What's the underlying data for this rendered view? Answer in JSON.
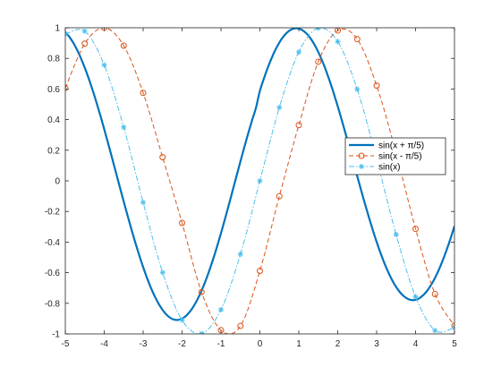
{
  "chart_data": {
    "type": "line",
    "title": "",
    "xlabel": "",
    "ylabel": "",
    "xlim": [
      -5,
      5
    ],
    "ylim": [
      -1,
      1
    ],
    "grid": false,
    "legend_position": "right",
    "x_ticks": [
      "-5",
      "-4",
      "-3",
      "-2",
      "-1",
      "0",
      "1",
      "2",
      "3",
      "4",
      "5"
    ],
    "y_ticks": [
      "-1",
      "-0.8",
      "-0.6",
      "-0.4",
      "-0.2",
      "0",
      "0.2",
      "0.4",
      "0.6",
      "0.8",
      "1"
    ],
    "series": [
      {
        "name": "sin(x + π/5)",
        "color": "#0072BD",
        "line_style": "solid",
        "marker": "none",
        "x": [
          -5.0,
          -4.9,
          -4.8,
          -4.7,
          -4.6,
          -4.5,
          -4.4,
          -4.3,
          -4.2,
          -4.1,
          -4.0,
          -3.9,
          -3.8,
          -3.7,
          -3.6,
          -3.5,
          -3.4,
          -3.3,
          -3.2,
          -3.1,
          -3.0,
          -2.9,
          -2.8,
          -2.7,
          -2.6,
          -2.5,
          -2.4,
          -2.3,
          -2.2,
          -2.1,
          -2.0,
          -1.9,
          -1.8,
          -1.7,
          -1.6,
          -1.5,
          -1.4,
          -1.3,
          -1.2,
          -1.1,
          -1.0,
          -0.9,
          -0.8,
          -0.7,
          -0.6,
          -0.5,
          -0.4,
          -0.3,
          -0.2,
          -0.1,
          0.0,
          0.1,
          0.2,
          0.3,
          0.4,
          0.5,
          0.6,
          0.7,
          0.8,
          0.9,
          1.0,
          1.1,
          1.2,
          1.3,
          1.4,
          1.5,
          1.6,
          1.7,
          1.8,
          1.9,
          2.0,
          2.1,
          2.2,
          2.3,
          2.4,
          2.5,
          2.6,
          2.7,
          2.8,
          2.9,
          3.0,
          3.1,
          3.2,
          3.3,
          3.4,
          3.5,
          3.6,
          3.7,
          3.8,
          3.9,
          4.0,
          4.1,
          4.2,
          4.3,
          4.4,
          4.5,
          4.6,
          4.7,
          4.8,
          4.9,
          5.0
        ],
        "y": [
          0.9715,
          0.942,
          0.9036,
          0.8565,
          0.8015,
          0.7389,
          0.6695,
          0.5938,
          0.5127,
          0.427,
          0.3375,
          0.2451,
          0.1508,
          0.0556,
          -0.0397,
          -0.1342,
          -0.2272,
          -0.3175,
          -0.4043,
          -0.4867,
          -0.5638,
          -0.6348,
          -0.6989,
          -0.7555,
          -0.8039,
          -0.8436,
          -0.8742,
          -0.8954,
          -0.9069,
          -0.9086,
          -0.9004,
          -0.8825,
          -0.8549,
          -0.8181,
          -0.7723,
          -0.718,
          -0.6558,
          -0.5863,
          -0.5103,
          -0.4286,
          -0.3421,
          -0.2517,
          -0.1585,
          -0.0636,
          0.0319,
          0.1269,
          0.22,
          0.3103,
          0.3967,
          0.4782,
          0.5878,
          0.6661,
          0.7374,
          0.8011,
          0.8566,
          0.9033,
          0.9409,
          0.969,
          0.9874,
          0.996,
          0.9945,
          0.9831,
          0.9618,
          0.9309,
          0.8907,
          0.8417,
          0.7843,
          0.7194,
          0.6476,
          0.5699,
          0.4871,
          0.4002,
          0.3101,
          0.218,
          0.1248,
          0.0317,
          -0.0603,
          -0.1503,
          -0.2373,
          -0.3205,
          -0.3989,
          -0.4717,
          -0.5382,
          -0.5977,
          -0.6495,
          -0.6931,
          -0.7281,
          -0.7542,
          -0.7711,
          -0.7787,
          -0.7771,
          -0.7662,
          -0.7462,
          -0.7173,
          -0.6797,
          -0.6338,
          -0.5799,
          -0.5186,
          -0.4503,
          -0.3757,
          -0.2955
        ]
      },
      {
        "name": "sin(x - π/5)",
        "color": "#D95319",
        "line_style": "dashed",
        "marker": "circle",
        "x": [
          -5.0,
          -4.5,
          -4.0,
          -3.5,
          -3.0,
          -2.5,
          -2.0,
          -1.5,
          -1.0,
          -0.5,
          0.0,
          0.5,
          1.0,
          1.5,
          2.0,
          2.5,
          3.0,
          3.5,
          4.0,
          4.5,
          5.0
        ],
        "y": [
          0.6061,
          0.896,
          0.9997,
          0.8829,
          0.5747,
          0.1542,
          -0.275,
          -0.7265,
          -0.9754,
          -0.9484,
          -0.5878,
          -0.1006,
          0.364,
          0.7781,
          0.9821,
          0.9259,
          0.6221,
          0.1816,
          -0.3138,
          -0.7397,
          -0.946
        ]
      },
      {
        "name": "sin(x)",
        "color": "#4DBEEE",
        "line_style": "dashdot",
        "marker": "asterisk",
        "x": [
          -5.0,
          -4.5,
          -4.0,
          -3.5,
          -3.0,
          -2.5,
          -2.0,
          -1.5,
          -1.0,
          -0.5,
          0.0,
          0.5,
          1.0,
          1.5,
          2.0,
          2.5,
          3.0,
          3.5,
          4.0,
          4.5,
          5.0
        ],
        "y": [
          0.9589,
          0.9775,
          0.7568,
          0.3508,
          -0.1411,
          -0.5985,
          -0.9093,
          -0.9975,
          -0.8415,
          -0.4794,
          0.0,
          0.4794,
          0.8415,
          0.9975,
          0.9093,
          0.5985,
          0.1411,
          -0.3508,
          -0.7568,
          -0.9775,
          -0.9589
        ]
      }
    ]
  }
}
